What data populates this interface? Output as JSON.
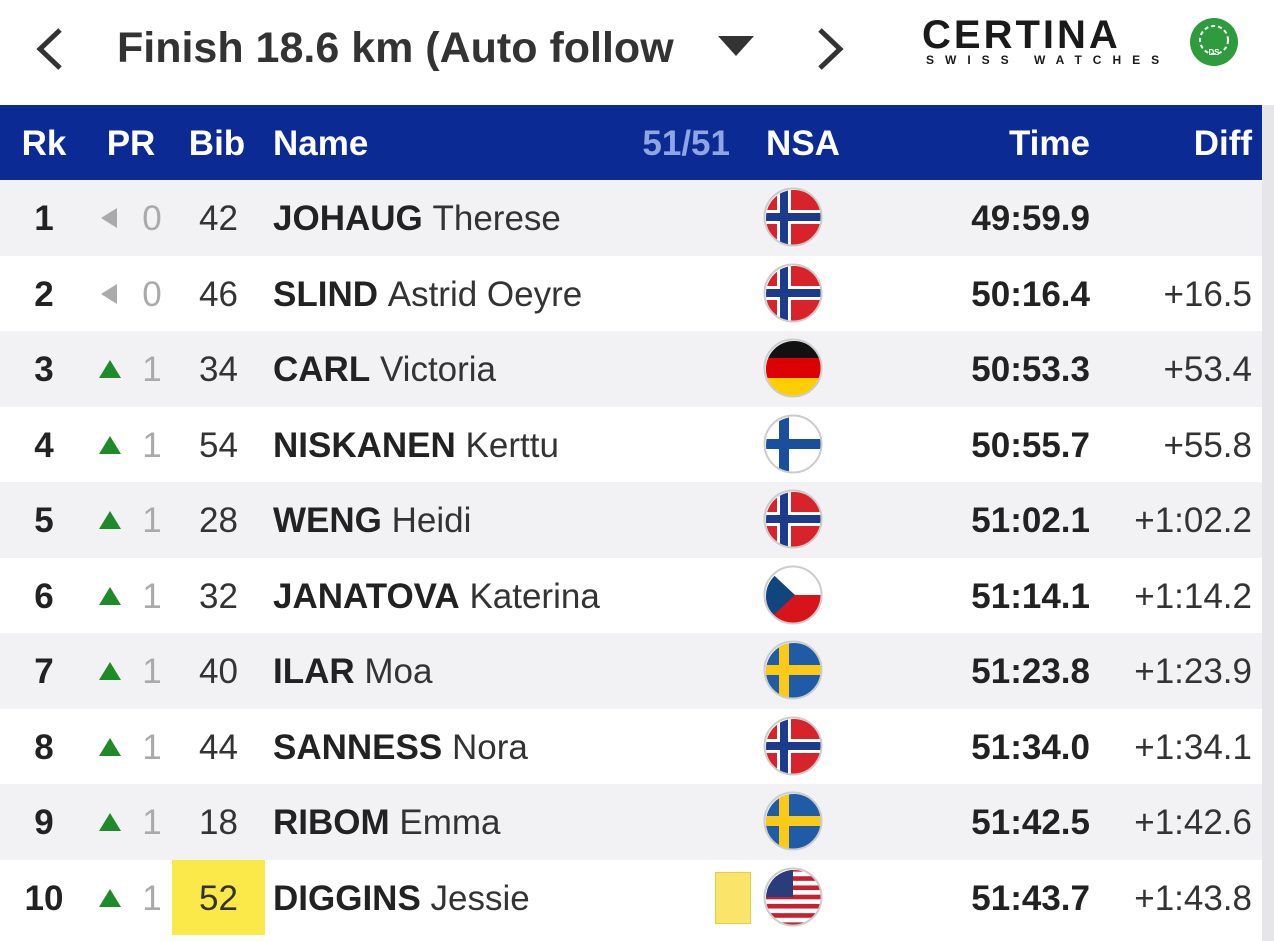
{
  "header": {
    "title": "Finish 18.6 km (Auto follow",
    "logo": {
      "brand": "CERTINA",
      "tagline": "SWISS WATCHES",
      "badge": "DS"
    }
  },
  "table": {
    "columns": [
      "Rk",
      "PR",
      "Bib",
      "Name",
      "51/51",
      "NSA",
      "Time",
      "Diff"
    ],
    "rows": [
      {
        "rank": 1,
        "pr": 0,
        "bib": 42,
        "last": "JOHAUG",
        "first": "Therese",
        "time": "49:59.9"
      },
      {
        "rank": 2,
        "pr": 0,
        "bib": 46,
        "last": "SLIND",
        "first": "Astrid Oeyre",
        "time": "50:16.4",
        "diff": "+16.5"
      },
      {
        "rank": 3,
        "pr": 1,
        "bib": 34,
        "last": "CARL",
        "first": "Victoria",
        "time": "50:53.3",
        "diff": "+53.4"
      },
      {
        "rank": 4,
        "pr": 1,
        "bib": 54,
        "last": "NISKANEN",
        "first": "Kerttu",
        "time": "50:55.7",
        "diff": "+55.8"
      },
      {
        "rank": 5,
        "pr": 1,
        "bib": 28,
        "last": "WENG",
        "first": "Heidi",
        "time": "51:02.1",
        "diff": "+1:02.2"
      },
      {
        "rank": 6,
        "pr": 1,
        "bib": 32,
        "last": "JANATOVA",
        "first": "Katerina",
        "time": "51:14.1",
        "diff": "+1:14.2"
      },
      {
        "rank": 7,
        "pr": 1,
        "bib": 40,
        "last": "ILAR",
        "first": "Moa",
        "time": "51:23.8",
        "diff": "+1:23.9"
      },
      {
        "rank": 8,
        "pr": 1,
        "bib": 44,
        "last": "SANNESS",
        "first": "Nora",
        "time": "51:34.0",
        "diff": "+1:34.1"
      },
      {
        "rank": 9,
        "pr": 1,
        "bib": 18,
        "last": "RIBOM",
        "first": "Emma",
        "time": "51:42.5",
        "diff": "+1:42.6"
      },
      {
        "rank": 10,
        "pr": 1,
        "bib": 52,
        "last": "DIGGINS",
        "first": "Jessie",
        "time": "51:43.7",
        "diff": "+1:43.8"
      }
    ]
  }
}
